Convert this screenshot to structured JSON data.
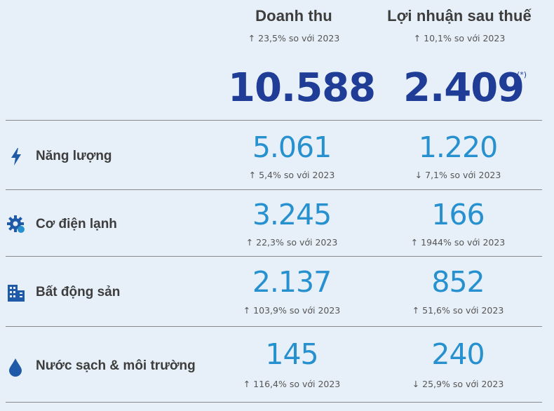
{
  "header": {
    "revenue": {
      "title": "Doanh thu",
      "change": "↑ 23,5% so với 2023",
      "total": "10.588"
    },
    "profit": {
      "title": "Lợi nhuận sau thuế",
      "change": "↑ 10,1% so với 2023",
      "total": "2.409",
      "footnote": "(*)"
    }
  },
  "segments": [
    {
      "name": "Năng lượng",
      "icon": "lightning-bolt-icon",
      "revenue": "5.061",
      "revenue_change": "↑ 5,4% so với 2023",
      "profit": "1.220",
      "profit_change": "↓ 7,1% so với 2023"
    },
    {
      "name": "Cơ điện lạnh",
      "icon": "gear-icon",
      "revenue": "3.245",
      "revenue_change": "↑ 22,3% so với 2023",
      "profit": "166",
      "profit_change": "↑ 1944% so với 2023"
    },
    {
      "name": "Bất động sản",
      "icon": "building-icon",
      "revenue": "2.137",
      "revenue_change": "↑ 103,9% so với 2023",
      "profit": "852",
      "profit_change": "↑ 51,6% so với 2023"
    },
    {
      "name": "Nước sạch & môi trường",
      "icon": "water-drop-icon",
      "revenue": "145",
      "revenue_change": "↑ 116,4% so với 2023",
      "profit": "240",
      "profit_change": "↓ 25,9% so với 2023"
    }
  ],
  "colors": {
    "total": "#1f3d97",
    "segment_value": "#2790cf",
    "icon": "#1e5aa8",
    "background": "#e7f0f8"
  }
}
